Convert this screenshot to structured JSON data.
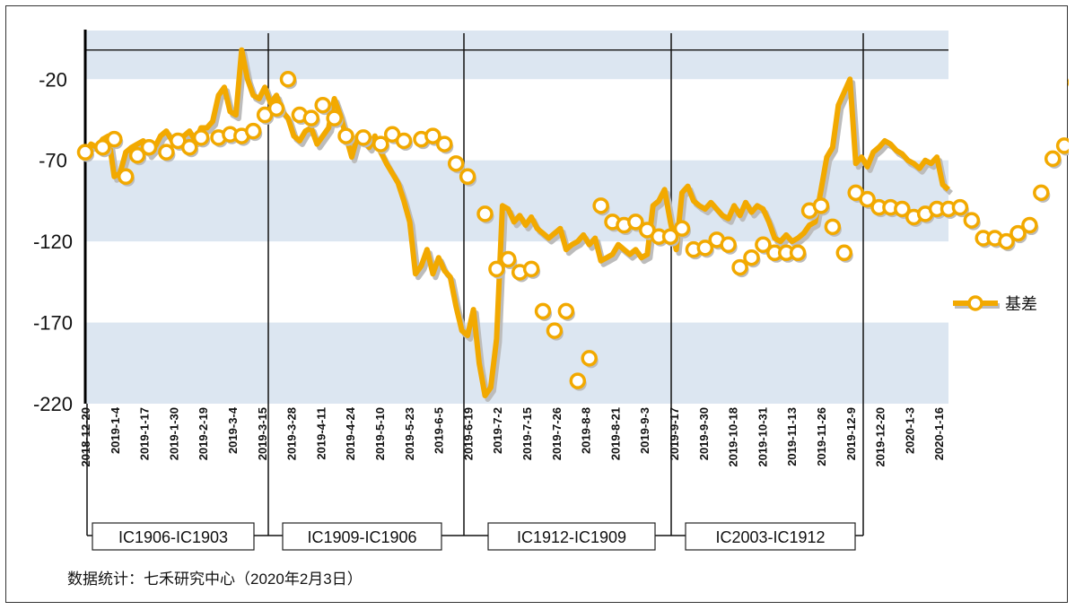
{
  "footnote": "数据统计：七禾研究中心（2020年2月3日）",
  "chart_data": {
    "type": "line",
    "title": "",
    "xlabel": "",
    "ylabel": "",
    "ylim": [
      -220,
      10
    ],
    "yticks": [
      -20,
      -70,
      -120,
      -170,
      -220
    ],
    "reference_line_y": -2,
    "grid": "alternating horizontal bands",
    "band_color": "#dce6f1",
    "series_color": "#f2a900",
    "shadow_color": "#bcbcbc",
    "legend": {
      "position": "right",
      "entries": [
        "基差"
      ]
    },
    "x_tick_labels": [
      "2018-12-20",
      "2019-1-4",
      "2019-1-17",
      "2019-1-30",
      "2019-2-19",
      "2019-3-4",
      "2019-3-15",
      "2019-3-28",
      "2019-4-11",
      "2019-4-24",
      "2019-5-10",
      "2019-5-23",
      "2019-6-5",
      "2019-6-19",
      "2019-7-2",
      "2019-7-15",
      "2019-7-26",
      "2019-8-8",
      "2019-8-21",
      "2019-9-3",
      "2019-9-17",
      "2019-9-30",
      "2019-10-18",
      "2019-10-31",
      "2019-11-13",
      "2019-11-26",
      "2019-12-9",
      "2019-12-20",
      "2020-1-3",
      "2020-1-16"
    ],
    "contract_periods": [
      {
        "label": "IC1906-IC1903",
        "start": "2018-12-20",
        "end": "2019-3-15"
      },
      {
        "label": "IC1909-IC1906",
        "start": "2019-3-15",
        "end": "2019-6-19"
      },
      {
        "label": "IC1912-IC1909",
        "start": "2019-6-19",
        "end": "2019-9-17"
      },
      {
        "label": "IC2003-IC1912",
        "start": "2019-9-17",
        "end": "2019-12-20"
      }
    ],
    "series": [
      {
        "name": "基差",
        "line": [
          -65,
          -60,
          -62,
          -57,
          -55,
          -80,
          -78,
          -65,
          -62,
          -60,
          -58,
          -66,
          -62,
          -55,
          -52,
          -58,
          -55,
          -55,
          -52,
          -58,
          -50,
          -50,
          -46,
          -30,
          -25,
          -40,
          -42,
          -2,
          -20,
          -30,
          -32,
          -25,
          -35,
          -30,
          -40,
          -44,
          -55,
          -58,
          -52,
          -50,
          -60,
          -55,
          -50,
          -32,
          -42,
          -55,
          -68,
          -55,
          -58,
          -62,
          -55,
          -65,
          -72,
          -78,
          -84,
          -95,
          -108,
          -140,
          -135,
          -125,
          -140,
          -130,
          -138,
          -142,
          -160,
          -175,
          -178,
          -162,
          -195,
          -215,
          -210,
          -180,
          -98,
          -100,
          -108,
          -104,
          -110,
          -105,
          -112,
          -115,
          -118,
          -115,
          -112,
          -125,
          -122,
          -120,
          -116,
          -122,
          -118,
          -132,
          -130,
          -128,
          -122,
          -125,
          -128,
          -125,
          -130,
          -128,
          -98,
          -95,
          -88,
          -108,
          -125,
          -90,
          -86,
          -95,
          -98,
          -100,
          -96,
          -100,
          -104,
          -106,
          -98,
          -104,
          -96,
          -102,
          -98,
          -100,
          -108,
          -118,
          -120,
          -116,
          -120,
          -118,
          -115,
          -110,
          -108,
          -88,
          -68,
          -62,
          -36,
          -28,
          -20,
          -72,
          -68,
          -74,
          -65,
          -62,
          -58,
          -60,
          -64,
          -66,
          -70,
          -72,
          -75,
          -70,
          -72,
          -68,
          -85,
          -88
        ],
        "markers": [
          [
            0,
            -65
          ],
          [
            3,
            -62
          ],
          [
            5,
            -57
          ],
          [
            7,
            -80
          ],
          [
            9,
            -67
          ],
          [
            11,
            -62
          ],
          [
            14,
            -65
          ],
          [
            16,
            -58
          ],
          [
            18,
            -62
          ],
          [
            20,
            -56
          ],
          [
            23,
            -56
          ],
          [
            25,
            -54
          ],
          [
            27,
            -55
          ],
          [
            29,
            -52
          ],
          [
            31,
            -42
          ],
          [
            33,
            -38
          ],
          [
            35,
            -20
          ],
          [
            37,
            -42
          ],
          [
            39,
            -44
          ],
          [
            41,
            -36
          ],
          [
            43,
            -44
          ],
          [
            45,
            -55
          ],
          [
            48,
            -56
          ],
          [
            51,
            -60
          ],
          [
            53,
            -54
          ],
          [
            55,
            -58
          ],
          [
            58,
            -57
          ],
          [
            60,
            -55
          ],
          [
            62,
            -60
          ],
          [
            64,
            -72
          ],
          [
            66,
            -80
          ],
          [
            69,
            -103
          ],
          [
            71,
            -137
          ],
          [
            73,
            -131
          ],
          [
            75,
            -139
          ],
          [
            77,
            -137
          ],
          [
            79,
            -163
          ],
          [
            81,
            -175
          ],
          [
            83,
            -163
          ],
          [
            85,
            -206
          ],
          [
            87,
            -192
          ],
          [
            89,
            -98
          ],
          [
            91,
            -108
          ],
          [
            93,
            -110
          ],
          [
            95,
            -108
          ],
          [
            97,
            -113
          ],
          [
            99,
            -117
          ],
          [
            101,
            -117
          ],
          [
            103,
            -112
          ],
          [
            105,
            -125
          ],
          [
            107,
            -124
          ],
          [
            109,
            -119
          ],
          [
            111,
            -122
          ],
          [
            113,
            -136
          ],
          [
            115,
            -130
          ],
          [
            117,
            -122
          ],
          [
            119,
            -127
          ],
          [
            121,
            -127
          ],
          [
            123,
            -127
          ],
          [
            125,
            -101
          ],
          [
            127,
            -98
          ],
          [
            129,
            -111
          ],
          [
            131,
            -127
          ],
          [
            133,
            -90
          ],
          [
            135,
            -94
          ],
          [
            137,
            -99
          ],
          [
            139,
            -99
          ],
          [
            141,
            -100
          ],
          [
            143,
            -105
          ],
          [
            145,
            -103
          ],
          [
            147,
            -100
          ],
          [
            149,
            -100
          ],
          [
            151,
            -99
          ],
          [
            153,
            -107
          ],
          [
            155,
            -118
          ],
          [
            157,
            -118
          ],
          [
            159,
            -120
          ],
          [
            161,
            -115
          ],
          [
            163,
            -110
          ],
          [
            165,
            -90
          ],
          [
            167,
            -69
          ],
          [
            169,
            -61
          ],
          [
            171,
            -22
          ],
          [
            173,
            -69
          ],
          [
            175,
            -64
          ],
          [
            177,
            -63
          ],
          [
            179,
            -62
          ],
          [
            181,
            -71
          ],
          [
            183,
            -68
          ],
          [
            185,
            -70
          ],
          [
            187,
            -71
          ],
          [
            189,
            -70
          ]
        ]
      }
    ]
  }
}
